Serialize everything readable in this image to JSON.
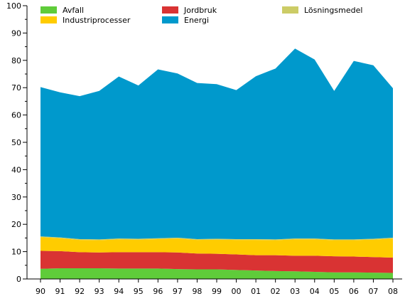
{
  "chart_data": {
    "type": "area",
    "stacked": true,
    "x": [
      "90",
      "91",
      "92",
      "93",
      "94",
      "95",
      "96",
      "97",
      "98",
      "99",
      "00",
      "01",
      "02",
      "03",
      "04",
      "05",
      "06",
      "07",
      "08"
    ],
    "ylim": [
      0,
      100
    ],
    "yticks": [
      0,
      10,
      20,
      30,
      40,
      50,
      60,
      70,
      80,
      90,
      100
    ],
    "legend_placement": "top",
    "grid": false,
    "series": [
      {
        "name": "Avfall",
        "color": "#5fcc3a",
        "values": [
          3.7,
          3.9,
          3.9,
          3.9,
          3.8,
          3.8,
          3.8,
          3.6,
          3.5,
          3.5,
          3.3,
          3.1,
          2.9,
          2.8,
          2.6,
          2.4,
          2.4,
          2.3,
          2.2
        ]
      },
      {
        "name": "Jordbruk",
        "color": "#d93333",
        "values": [
          6.6,
          6.3,
          5.9,
          5.8,
          6.0,
          6.0,
          6.0,
          6.1,
          5.8,
          5.7,
          5.7,
          5.6,
          5.8,
          5.7,
          5.9,
          5.9,
          5.8,
          5.7,
          5.6
        ]
      },
      {
        "name": "Industriprocesser",
        "color": "#ffcc00",
        "values": [
          5.0,
          4.7,
          4.5,
          4.5,
          4.7,
          4.6,
          4.8,
          5.1,
          5.0,
          5.2,
          5.3,
          5.6,
          5.5,
          6.0,
          6.0,
          5.9,
          6.0,
          6.4,
          7.0
        ]
      },
      {
        "name": "Lösningsmedel",
        "color": "#cccc66",
        "values": [
          0.3,
          0.3,
          0.3,
          0.3,
          0.3,
          0.3,
          0.3,
          0.3,
          0.3,
          0.3,
          0.3,
          0.3,
          0.3,
          0.3,
          0.3,
          0.3,
          0.3,
          0.3,
          0.3
        ]
      },
      {
        "name": "Energi",
        "color": "#0099cc",
        "values": [
          54.6,
          53.1,
          52.3,
          54.3,
          59.3,
          56.1,
          61.8,
          60.1,
          57.1,
          56.6,
          54.5,
          59.6,
          62.5,
          69.5,
          65.5,
          54.3,
          65.3,
          63.5,
          54.7
        ]
      }
    ],
    "legend_order": [
      "Avfall",
      "Jordbruk",
      "Lösningsmedel",
      "Industriprocesser",
      "Energi"
    ]
  }
}
